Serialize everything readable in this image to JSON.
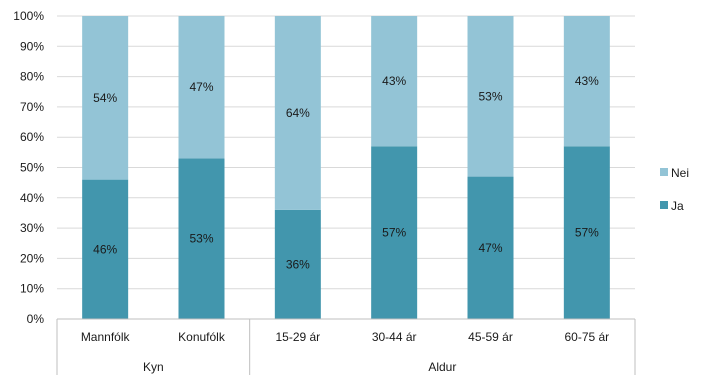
{
  "chart_data": {
    "type": "bar",
    "stacked": true,
    "percent": true,
    "categories": [
      "Mannfólk",
      "Konufólk",
      "15-29 ár",
      "30-44 ár",
      "45-59 ár",
      "60-75 ár"
    ],
    "groups": [
      {
        "label": "Kyn",
        "count": 2
      },
      {
        "label": "Aldur",
        "count": 4
      }
    ],
    "series": [
      {
        "name": "Ja",
        "color": "#4296ad",
        "values": [
          46,
          53,
          36,
          57,
          47,
          57
        ],
        "labels": [
          "46%",
          "53%",
          "36%",
          "57%",
          "47%",
          "57%"
        ]
      },
      {
        "name": "Nei",
        "color": "#93c4d6",
        "values": [
          54,
          47,
          64,
          43,
          53,
          43
        ],
        "labels": [
          "54%",
          "47%",
          "64%",
          "43%",
          "53%",
          "43%"
        ]
      }
    ],
    "ylim": [
      0,
      100
    ],
    "yticks": [
      "0%",
      "10%",
      "20%",
      "30%",
      "40%",
      "50%",
      "60%",
      "70%",
      "80%",
      "90%",
      "100%"
    ],
    "legend": {
      "placement": "right",
      "entries": [
        "Nei",
        "Ja"
      ]
    },
    "grid": true
  }
}
